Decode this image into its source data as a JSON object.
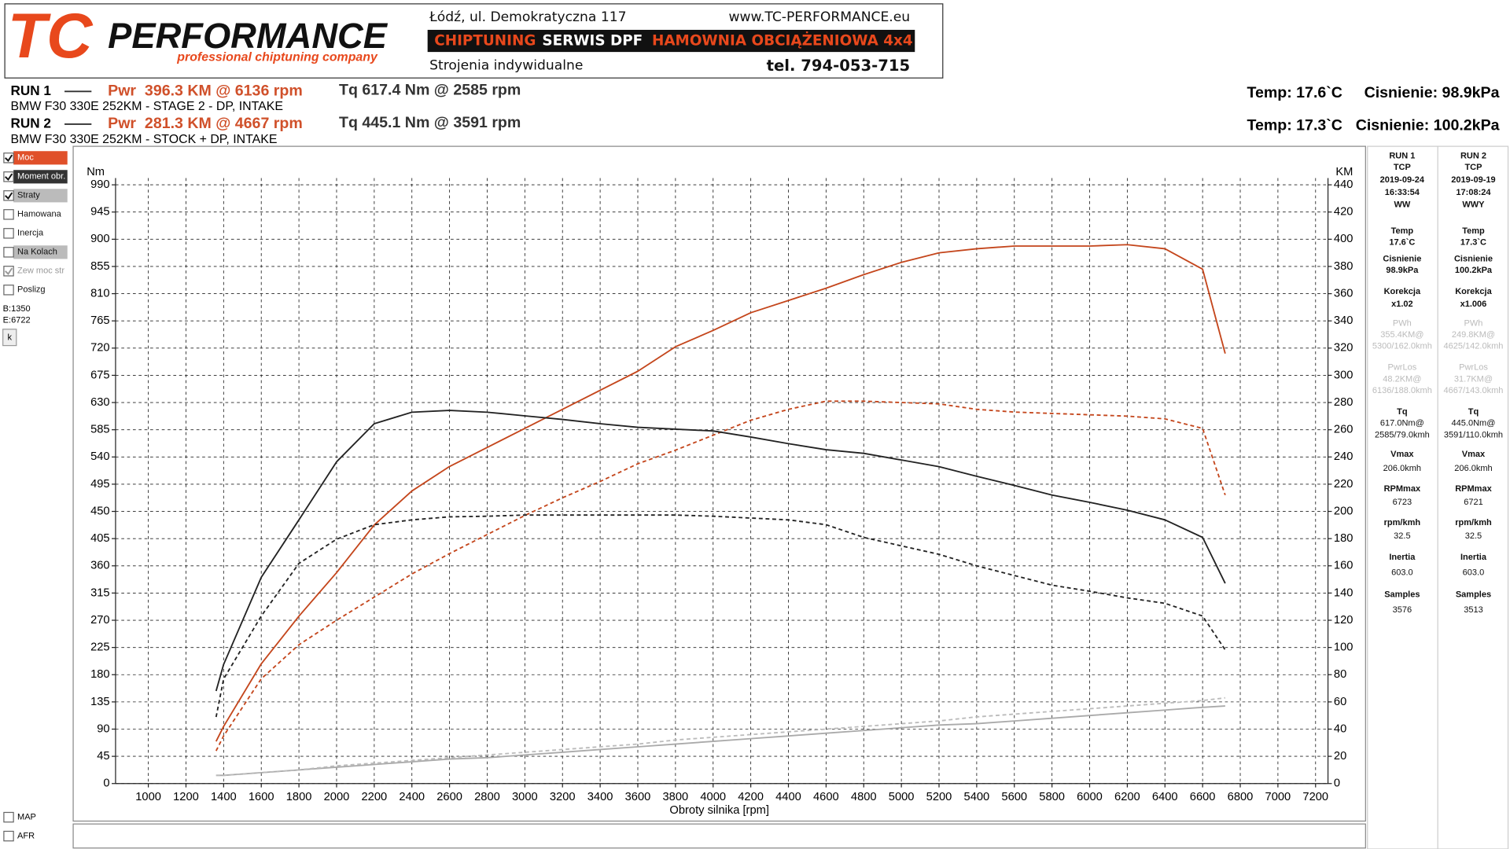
{
  "header": {
    "logo_tc": "TC",
    "logo_performance": "PERFORMANCE",
    "slogan": "professional chiptuning company",
    "address": "Łódź, ul. Demokratyczna 117",
    "website": "www.TC-PERFORMANCE.eu",
    "band": [
      "CHIPTUNING",
      "SERWIS DPF",
      "HAMOWNIA OBCIĄŻENIOWA 4x4"
    ],
    "tagline": "Strojenia indywidualne",
    "phone": "tel. 794-053-715"
  },
  "runs": [
    {
      "label": "RUN 1",
      "power": "Pwr  396.3 KM @ 6136 rpm",
      "torque": "Tq 617.4 Nm @ 2585 rpm",
      "car": "BMW F30 330E 252KM - STAGE 2 - DP, INTAKE",
      "temp": "Temp: 17.6`C",
      "pressure": "Cisnienie: 98.9kPa"
    },
    {
      "label": "RUN 2",
      "power": "Pwr  281.3 KM @ 4667 rpm",
      "torque": "Tq 445.1 Nm @ 3591 rpm",
      "car": "BMW F30 330E 252KM - STOCK + DP, INTAKE",
      "temp": "Temp: 17.3`C",
      "pressure": "Cisnienie: 100.2kPa"
    }
  ],
  "checkboxes": [
    {
      "label": "Moc",
      "checked": true
    },
    {
      "label": "Moment obr.",
      "checked": true
    },
    {
      "label": "Straty",
      "checked": true
    },
    {
      "label": "Hamowana",
      "checked": false
    },
    {
      "label": "Inercja",
      "checked": false
    },
    {
      "label": "Na Kolach",
      "checked": false
    },
    {
      "label": "Zew moc str",
      "checked": true
    },
    {
      "label": "Poslizg",
      "checked": false
    }
  ],
  "range_begin": "B:1350",
  "range_end": "E:6722",
  "button": "k",
  "bottom_checkboxes": [
    {
      "label": "MAP",
      "checked": false
    },
    {
      "label": "AFR",
      "checked": false
    }
  ],
  "panel": [
    [
      "RUN 1",
      "TCP",
      "2019-09-24",
      "16:33:54",
      "WW",
      "Temp",
      "17.6`C",
      "Cisnienie",
      "98.9kPa",
      "Korekcja",
      "x1.02",
      "PWh",
      "355.4KM@",
      "5300/162.0kmh",
      "PwrLos",
      "48.2KM@",
      "6136/188.0kmh",
      "Tq",
      "617.0Nm@",
      "2585/79.0kmh",
      "Vmax",
      "206.0kmh",
      "RPMmax",
      "6723",
      "rpm/kmh",
      "32.5",
      "Inertia",
      "603.0",
      "Samples",
      "3576"
    ],
    [
      "RUN 2",
      "TCP",
      "2019-09-19",
      "17:08:24",
      "WWY",
      "Temp",
      "17.3`C",
      "Cisnienie",
      "100.2kPa",
      "Korekcja",
      "x1.006",
      "PWh",
      "249.8KM@",
      "4625/142.0kmh",
      "PwrLos",
      "31.7KM@",
      "4667/143.0kmh",
      "Tq",
      "445.0Nm@",
      "3591/110.0kmh",
      "Vmax",
      "206.0kmh",
      "RPMmax",
      "6721",
      "rpm/kmh",
      "32.5",
      "Inertia",
      "603.0",
      "Samples",
      "3513"
    ]
  ],
  "chart_data": {
    "type": "line",
    "y_label": "Nm",
    "y2_label": "KM",
    "x_label": "Obroty silnika [rpm]",
    "grid": true,
    "x": [
      1360,
      1400,
      1600,
      1800,
      2000,
      2200,
      2400,
      2600,
      2800,
      3000,
      3200,
      3400,
      3600,
      3800,
      4000,
      4200,
      4400,
      4600,
      4800,
      5000,
      5200,
      5400,
      5600,
      5800,
      6000,
      6200,
      6400,
      6600,
      6720
    ],
    "xlim": [
      826,
      7266
    ],
    "xticks": [
      1000,
      1200,
      1400,
      1600,
      1800,
      2000,
      2200,
      2400,
      2600,
      2800,
      3000,
      3200,
      3400,
      3600,
      3800,
      4000,
      4200,
      4400,
      4600,
      4800,
      5000,
      5200,
      5400,
      5600,
      5800,
      6000,
      6200,
      6400,
      6600,
      6800,
      7000,
      7200
    ],
    "ylim": [
      0,
      990
    ],
    "yticks": [
      0,
      45,
      90,
      135,
      180,
      225,
      270,
      315,
      360,
      405,
      450,
      495,
      540,
      585,
      630,
      675,
      720,
      765,
      810,
      855,
      900,
      945,
      990
    ],
    "y2lim": [
      0,
      440
    ],
    "y2ticks": [
      0,
      20,
      40,
      60,
      80,
      100,
      120,
      140,
      160,
      180,
      200,
      220,
      240,
      260,
      280,
      300,
      320,
      340,
      360,
      380,
      400,
      420,
      440
    ],
    "series": [
      {
        "color": "#c4461c",
        "axis": "y2",
        "dashed": false,
        "values": [
          31,
          42,
          88,
          123,
          155,
          190,
          215,
          233,
          247,
          261,
          275,
          289,
          303,
          321,
          333,
          346,
          355,
          364,
          374,
          383,
          390,
          393,
          395,
          395,
          395,
          396,
          393,
          378,
          316
        ]
      },
      {
        "color": "#c4461c",
        "axis": "y2",
        "dashed": true,
        "values": [
          24,
          35,
          77,
          102,
          120,
          137,
          154,
          169,
          183,
          197,
          210,
          222,
          235,
          245,
          256,
          267,
          275,
          281,
          281,
          280,
          279,
          275,
          273,
          272,
          271,
          270,
          268,
          261,
          212
        ]
      },
      {
        "color": "#222222",
        "axis": "y",
        "dashed": false,
        "values": [
          153,
          197,
          341,
          436,
          532,
          595,
          614,
          617,
          614,
          608,
          602,
          595,
          589,
          586,
          583,
          573,
          562,
          552,
          546,
          535,
          524,
          508,
          493,
          477,
          465,
          452,
          436,
          407,
          331
        ]
      },
      {
        "color": "#222222",
        "axis": "y",
        "dashed": true,
        "values": [
          110,
          173,
          277,
          364,
          404,
          428,
          436,
          441,
          442,
          444,
          444,
          444,
          444,
          444,
          442,
          439,
          436,
          428,
          407,
          393,
          379,
          360,
          344,
          328,
          318,
          307,
          298,
          277,
          221
        ]
      },
      {
        "color": "#aaaaaa",
        "axis": "y2",
        "dashed": false,
        "values": [
          6,
          6,
          8,
          10,
          12,
          14,
          16,
          18,
          19,
          21,
          23,
          25,
          27,
          29,
          31,
          33,
          35,
          37,
          39,
          41,
          43,
          44,
          46,
          48,
          50,
          52,
          54,
          56,
          57
        ]
      },
      {
        "color": "#bbbbbb",
        "axis": "y2",
        "dashed": true,
        "values": [
          6,
          6,
          8,
          10,
          13,
          15,
          17,
          19,
          21,
          23,
          25,
          27,
          29,
          32,
          34,
          36,
          38,
          40,
          42,
          44,
          46,
          49,
          51,
          53,
          55,
          57,
          59,
          61,
          63
        ]
      }
    ]
  }
}
